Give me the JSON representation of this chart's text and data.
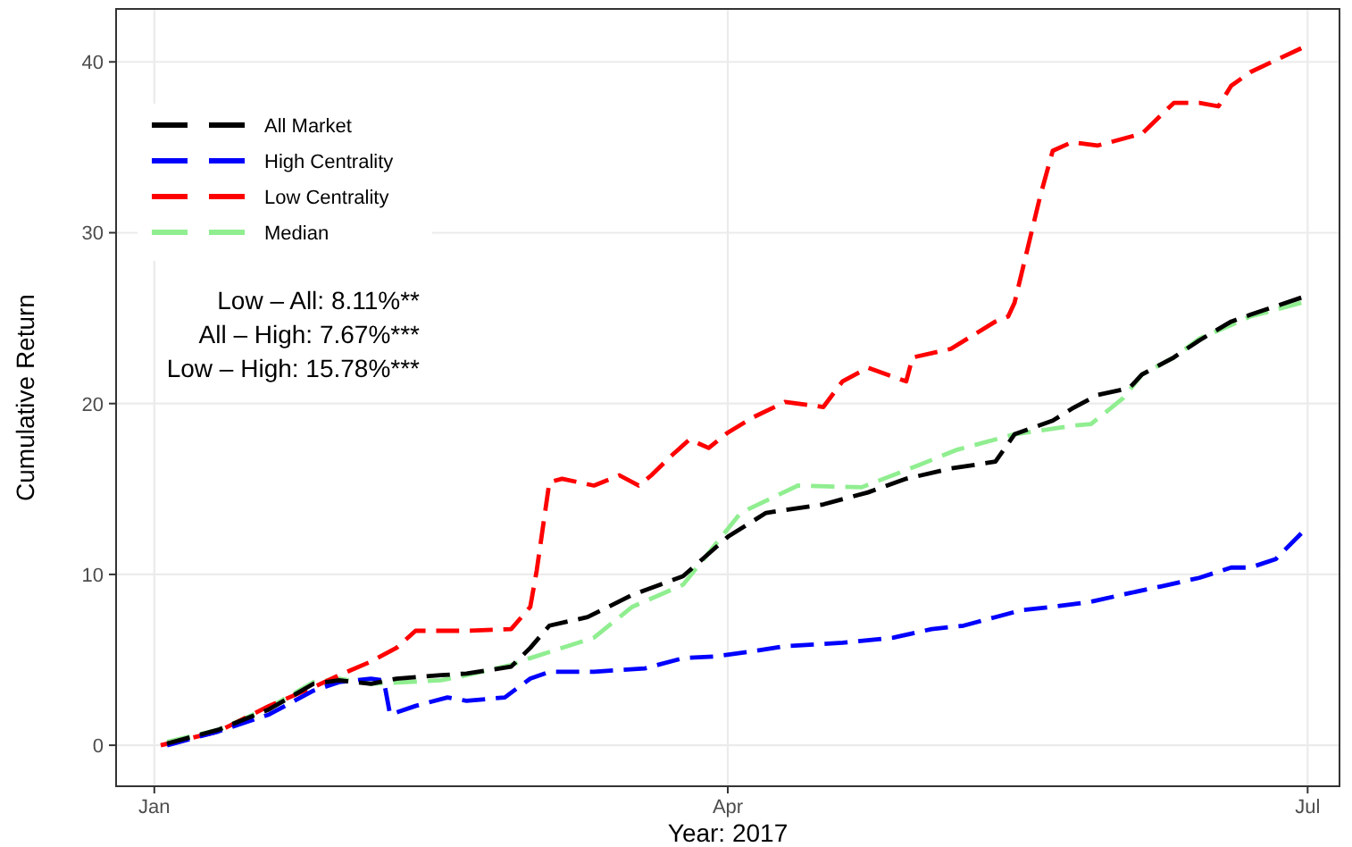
{
  "chart_data": {
    "type": "line",
    "xlabel": "Year: 2017",
    "ylabel": "Cumulative Return",
    "xlim": [
      "2016-12-26",
      "2017-07-06"
    ],
    "ylim": [
      -2.4,
      43.1
    ],
    "xticks": [
      {
        "value": "2017-01-01",
        "label": "Jan"
      },
      {
        "value": "2017-04-01",
        "label": "Apr"
      },
      {
        "value": "2017-07-01",
        "label": "Jul"
      }
    ],
    "yticks": [
      0,
      10,
      20,
      30,
      40
    ],
    "grid": true,
    "legend": "top left",
    "line_style": "dashed",
    "annotations": [
      "Low – All: 8.11%**",
      "All – High: 7.67%***",
      "Low – High: 15.78%***"
    ],
    "series": [
      {
        "name": "All Market",
        "color": "#000000",
        "x": [
          "2017-01-03",
          "2017-01-11",
          "2017-01-19",
          "2017-01-26",
          "2017-01-30",
          "2017-02-04",
          "2017-02-08",
          "2017-02-15",
          "2017-02-19",
          "2017-02-26",
          "2017-03-01",
          "2017-03-04",
          "2017-03-10",
          "2017-03-17",
          "2017-03-25",
          "2017-04-01",
          "2017-04-07",
          "2017-04-16",
          "2017-04-23",
          "2017-04-29",
          "2017-05-06",
          "2017-05-13",
          "2017-05-16",
          "2017-05-22",
          "2017-05-25",
          "2017-05-29",
          "2017-06-03",
          "2017-06-05",
          "2017-06-10",
          "2017-06-14",
          "2017-06-19",
          "2017-06-22",
          "2017-06-30"
        ],
        "values": [
          0.1,
          0.9,
          2.1,
          3.6,
          3.8,
          3.6,
          3.9,
          4.1,
          4.2,
          4.6,
          5.7,
          7.0,
          7.5,
          8.8,
          9.9,
          12.2,
          13.6,
          14.1,
          14.8,
          15.6,
          16.2,
          16.6,
          18.2,
          19,
          19.7,
          20.5,
          20.9,
          21.7,
          22.7,
          23.7,
          24.8,
          25.2,
          26.2
        ]
      },
      {
        "name": "High Centrality",
        "color": "#0000ff",
        "x": [
          "2017-01-03",
          "2017-01-11",
          "2017-01-19",
          "2017-01-26",
          "2017-01-30",
          "2017-02-04",
          "2017-02-06",
          "2017-02-07",
          "2017-02-11",
          "2017-02-16",
          "2017-02-19",
          "2017-02-25",
          "2017-03-01",
          "2017-03-04",
          "2017-03-11",
          "2017-03-19",
          "2017-03-25",
          "2017-03-30",
          "2017-04-05",
          "2017-04-10",
          "2017-04-19",
          "2017-04-27",
          "2017-05-03",
          "2017-05-08",
          "2017-05-13",
          "2017-05-17",
          "2017-05-22",
          "2017-05-28",
          "2017-06-03",
          "2017-06-08",
          "2017-06-14",
          "2017-06-19",
          "2017-06-22",
          "2017-06-26",
          "2017-06-30"
        ],
        "values": [
          0,
          0.8,
          1.8,
          3.2,
          3.7,
          3.9,
          3.8,
          1.8,
          2.3,
          2.8,
          2.6,
          2.8,
          3.9,
          4.3,
          4.3,
          4.5,
          5.1,
          5.2,
          5.5,
          5.8,
          6,
          6.3,
          6.8,
          7,
          7.5,
          7.9,
          8.1,
          8.4,
          8.9,
          9.3,
          9.8,
          10.4,
          10.4,
          10.9,
          12.4
        ]
      },
      {
        "name": "Low Centrality",
        "color": "#ff0000",
        "x": [
          "2017-01-02",
          "2017-01-11",
          "2017-01-19",
          "2017-01-26",
          "2017-01-30",
          "2017-02-04",
          "2017-02-08",
          "2017-02-11",
          "2017-02-19",
          "2017-02-26",
          "2017-03-01",
          "2017-03-02",
          "2017-03-04",
          "2017-03-06",
          "2017-03-11",
          "2017-03-15",
          "2017-03-18",
          "2017-03-20",
          "2017-03-23",
          "2017-03-26",
          "2017-03-29",
          "2017-04-01",
          "2017-04-05",
          "2017-04-10",
          "2017-04-16",
          "2017-04-19",
          "2017-04-23",
          "2017-04-29",
          "2017-04-30",
          "2017-05-06",
          "2017-05-13",
          "2017-05-15",
          "2017-05-16",
          "2017-05-18",
          "2017-05-20",
          "2017-05-22",
          "2017-05-25",
          "2017-05-29",
          "2017-06-05",
          "2017-06-10",
          "2017-06-14",
          "2017-06-17",
          "2017-06-19",
          "2017-06-22",
          "2017-06-30"
        ],
        "values": [
          0,
          0.8,
          2.3,
          3.4,
          4.1,
          4.9,
          5.7,
          6.7,
          6.7,
          6.8,
          8.1,
          10.2,
          15.4,
          15.6,
          15.2,
          15.8,
          15.2,
          15.8,
          16.9,
          17.9,
          17.4,
          18.3,
          19.2,
          20.1,
          19.8,
          21.3,
          22.1,
          21.3,
          22.7,
          23.2,
          24.8,
          25.1,
          25.9,
          29,
          32.1,
          34.8,
          35.3,
          35.1,
          35.8,
          37.6,
          37.6,
          37.4,
          38.6,
          39.4,
          40.8
        ]
      },
      {
        "name": "Median",
        "color": "#90ee90",
        "x": [
          "2017-01-03",
          "2017-01-11",
          "2017-01-19",
          "2017-01-26",
          "2017-01-30",
          "2017-02-04",
          "2017-02-15",
          "2017-02-19",
          "2017-02-26",
          "2017-03-01",
          "2017-03-11",
          "2017-03-17",
          "2017-03-25",
          "2017-04-03",
          "2017-04-12",
          "2017-04-22",
          "2017-05-01",
          "2017-05-07",
          "2017-05-16",
          "2017-05-25",
          "2017-05-28",
          "2017-06-02",
          "2017-06-05",
          "2017-06-10",
          "2017-06-14",
          "2017-06-19",
          "2017-06-22",
          "2017-06-30"
        ],
        "values": [
          0.2,
          0.9,
          2.2,
          3.7,
          3.9,
          3.6,
          3.8,
          4.1,
          4.7,
          5.1,
          6.3,
          8.1,
          9.4,
          13.6,
          15.2,
          15.1,
          16.4,
          17.3,
          18.2,
          18.7,
          18.8,
          20.3,
          21.7,
          22.7,
          23.8,
          24.6,
          25.1,
          25.9
        ]
      }
    ]
  }
}
